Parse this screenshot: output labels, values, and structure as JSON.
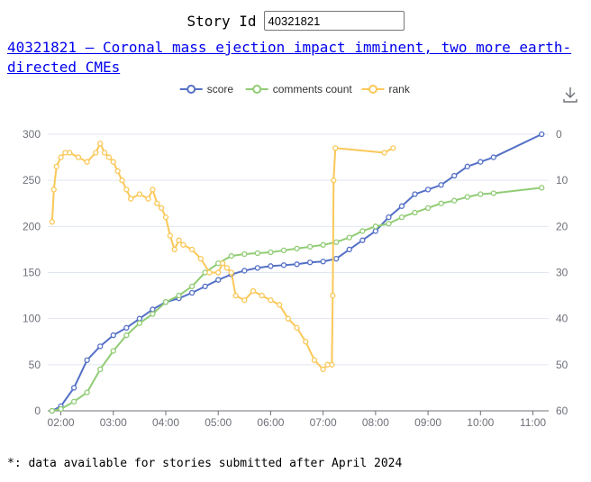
{
  "story_id_label": "Story Id",
  "story_id_value": "40321821",
  "story_link_text": "40321821 – Coronal mass ejection impact imminent, two more earth-directed CMEs",
  "footnote": "*: data available for stories submitted after April 2024",
  "chart_data": {
    "type": "line",
    "x_axis": {
      "type": "time",
      "ticks": [
        "02:00",
        "03:00",
        "04:00",
        "05:00",
        "06:00",
        "07:00",
        "08:00",
        "09:00",
        "10:00",
        "11:00"
      ]
    },
    "y_axis_left": {
      "range": [
        0,
        300
      ],
      "ticks": [
        0,
        50,
        100,
        150,
        200,
        250,
        300
      ],
      "grid": true
    },
    "y_axis_right": {
      "range": [
        0,
        60
      ],
      "inverted": true,
      "ticks": [
        0,
        10,
        20,
        30,
        40,
        50,
        60
      ]
    },
    "legend": {
      "placement": "top-center",
      "entries": [
        "score",
        "comments count",
        "rank"
      ]
    },
    "series": [
      {
        "name": "score",
        "color": "#5470c6",
        "axis": "left",
        "x": [
          "01:50",
          "02:00",
          "02:15",
          "02:30",
          "02:45",
          "03:00",
          "03:15",
          "03:30",
          "03:45",
          "04:00",
          "04:15",
          "04:30",
          "04:45",
          "05:00",
          "05:15",
          "05:30",
          "05:45",
          "06:00",
          "06:15",
          "06:30",
          "06:45",
          "07:00",
          "07:15",
          "07:30",
          "07:45",
          "08:00",
          "08:15",
          "08:30",
          "08:45",
          "09:00",
          "09:15",
          "09:30",
          "09:45",
          "10:00",
          "10:15",
          "11:10"
        ],
        "values": [
          0,
          5,
          25,
          55,
          70,
          82,
          90,
          100,
          110,
          118,
          122,
          128,
          135,
          142,
          148,
          152,
          155,
          157,
          158,
          159,
          161,
          162,
          165,
          175,
          185,
          195,
          210,
          222,
          235,
          240,
          245,
          255,
          265,
          270,
          275,
          300
        ]
      },
      {
        "name": "comments count",
        "color": "#91cc75",
        "axis": "left",
        "x": [
          "01:50",
          "02:00",
          "02:15",
          "02:30",
          "02:45",
          "03:00",
          "03:15",
          "03:30",
          "03:45",
          "04:00",
          "04:15",
          "04:30",
          "04:45",
          "05:00",
          "05:15",
          "05:30",
          "05:45",
          "06:00",
          "06:15",
          "06:30",
          "06:45",
          "07:00",
          "07:15",
          "07:30",
          "07:45",
          "08:00",
          "08:15",
          "08:30",
          "08:45",
          "09:00",
          "09:15",
          "09:30",
          "09:45",
          "10:00",
          "10:15",
          "11:10"
        ],
        "values": [
          0,
          2,
          10,
          20,
          45,
          65,
          82,
          95,
          105,
          118,
          125,
          135,
          150,
          160,
          168,
          170,
          171,
          172,
          174,
          176,
          178,
          180,
          183,
          188,
          195,
          200,
          203,
          210,
          215,
          220,
          225,
          228,
          232,
          235,
          236,
          242
        ]
      },
      {
        "name": "rank",
        "color": "#fac858",
        "axis": "right",
        "x": [
          "01:50",
          "01:52",
          "01:55",
          "02:00",
          "02:05",
          "02:10",
          "02:20",
          "02:30",
          "02:40",
          "02:45",
          "02:50",
          "02:55",
          "03:00",
          "03:05",
          "03:10",
          "03:15",
          "03:20",
          "03:30",
          "03:40",
          "03:45",
          "03:50",
          "03:55",
          "04:00",
          "04:05",
          "04:10",
          "04:15",
          "04:20",
          "04:30",
          "04:40",
          "04:50",
          "05:00",
          "05:05",
          "05:10",
          "05:15",
          "05:20",
          "05:30",
          "05:40",
          "05:50",
          "06:00",
          "06:10",
          "06:20",
          "06:30",
          "06:40",
          "06:50",
          "07:00",
          "07:05",
          "07:10",
          "07:11",
          "07:12",
          "07:14",
          "08:10",
          "08:20"
        ],
        "values": [
          19,
          12,
          7,
          5,
          4,
          4,
          5,
          6,
          4,
          2,
          4,
          5,
          6,
          8,
          10,
          12,
          14,
          13,
          14,
          12,
          15,
          16,
          18,
          22,
          25,
          23,
          24,
          25,
          27,
          30,
          30,
          28,
          29,
          30,
          35,
          36,
          34,
          35,
          36,
          37,
          40,
          42,
          45,
          49,
          51,
          50,
          50,
          35,
          10,
          3,
          4,
          3
        ]
      }
    ]
  }
}
